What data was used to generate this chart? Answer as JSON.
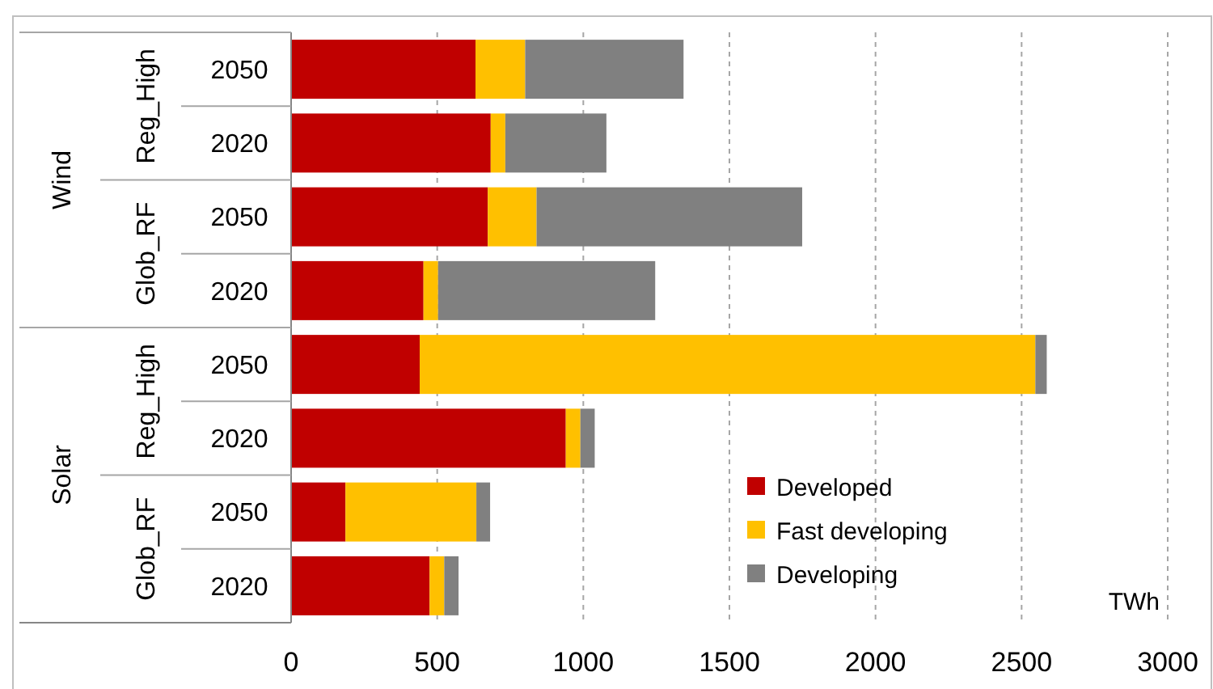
{
  "chart_data": {
    "type": "bar",
    "orientation": "horizontal",
    "stacked": true,
    "categories": [
      "2050",
      "2020",
      "2050",
      "2020",
      "2050",
      "2020",
      "2050",
      "2020"
    ],
    "series": [
      {
        "name": "Developed",
        "color": "#c00000",
        "values": [
          631,
          683,
          673,
          453,
          440,
          940,
          186,
          474
        ]
      },
      {
        "name": "Fast developing",
        "color": "#ffc000",
        "values": [
          170,
          50,
          167,
          50,
          2107,
          50,
          448,
          50
        ]
      },
      {
        "name": "Developing",
        "color": "#808080",
        "values": [
          542,
          346,
          909,
          743,
          39,
          49,
          47,
          49
        ]
      }
    ],
    "xlim": [
      0,
      3000
    ],
    "xticks": [
      0,
      500,
      1000,
      1500,
      2000,
      2500,
      3000
    ],
    "xlabel": "TWh",
    "grid": "x",
    "legend": "bottom right",
    "annotations": [
      "Reg_High",
      "Glob_RF",
      "Reg_High",
      "Glob_RF",
      "Wind",
      "Solar"
    ]
  }
}
